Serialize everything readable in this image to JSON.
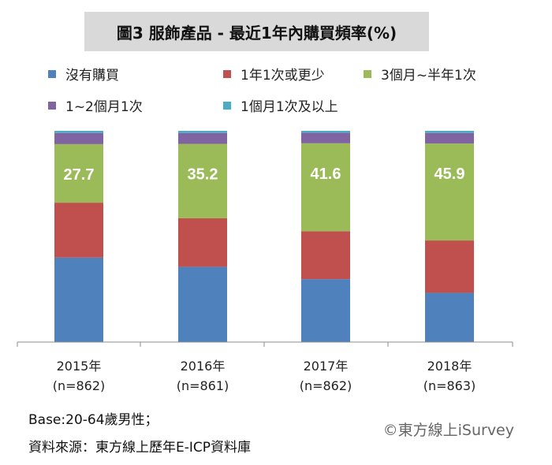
{
  "title": "圖3 服飾產品 - 最近1年內購買頻率(%)",
  "footer": {
    "base": "Base:20-64歲男性；",
    "source": "資料來源：東方線上歷年E-ICP資料庫"
  },
  "copyright": "©東方線上iSurvey",
  "chart_data": {
    "type": "bar",
    "stacked": true,
    "categories": [
      "2015年",
      "2016年",
      "2017年",
      "2018年"
    ],
    "category_sublabels": [
      "(n=862)",
      "(n=861)",
      "(n=862)",
      "(n=863)"
    ],
    "ylim": [
      0,
      100
    ],
    "grid": false,
    "legend_position": "top",
    "series": [
      {
        "name": "沒有購買",
        "color": "#4f81bd",
        "values": [
          40.0,
          35.6,
          29.8,
          23.3
        ]
      },
      {
        "name": "1年1次或更少",
        "color": "#c0504d",
        "values": [
          26.0,
          23.0,
          22.7,
          24.8
        ]
      },
      {
        "name": "3個月~半年1次",
        "color": "#9bbb59",
        "values": [
          27.7,
          35.2,
          41.6,
          45.9
        ]
      },
      {
        "name": "1~2個月1次",
        "color": "#8064a2",
        "values": [
          5.3,
          5.2,
          5.0,
          5.0
        ]
      },
      {
        "name": "1個月1次及以上",
        "color": "#4bacc6",
        "values": [
          1.0,
          1.0,
          0.9,
          1.0
        ]
      }
    ],
    "data_labels": {
      "series_index": 2,
      "values": [
        "27.7",
        "35.2",
        "41.6",
        "45.9"
      ]
    }
  }
}
